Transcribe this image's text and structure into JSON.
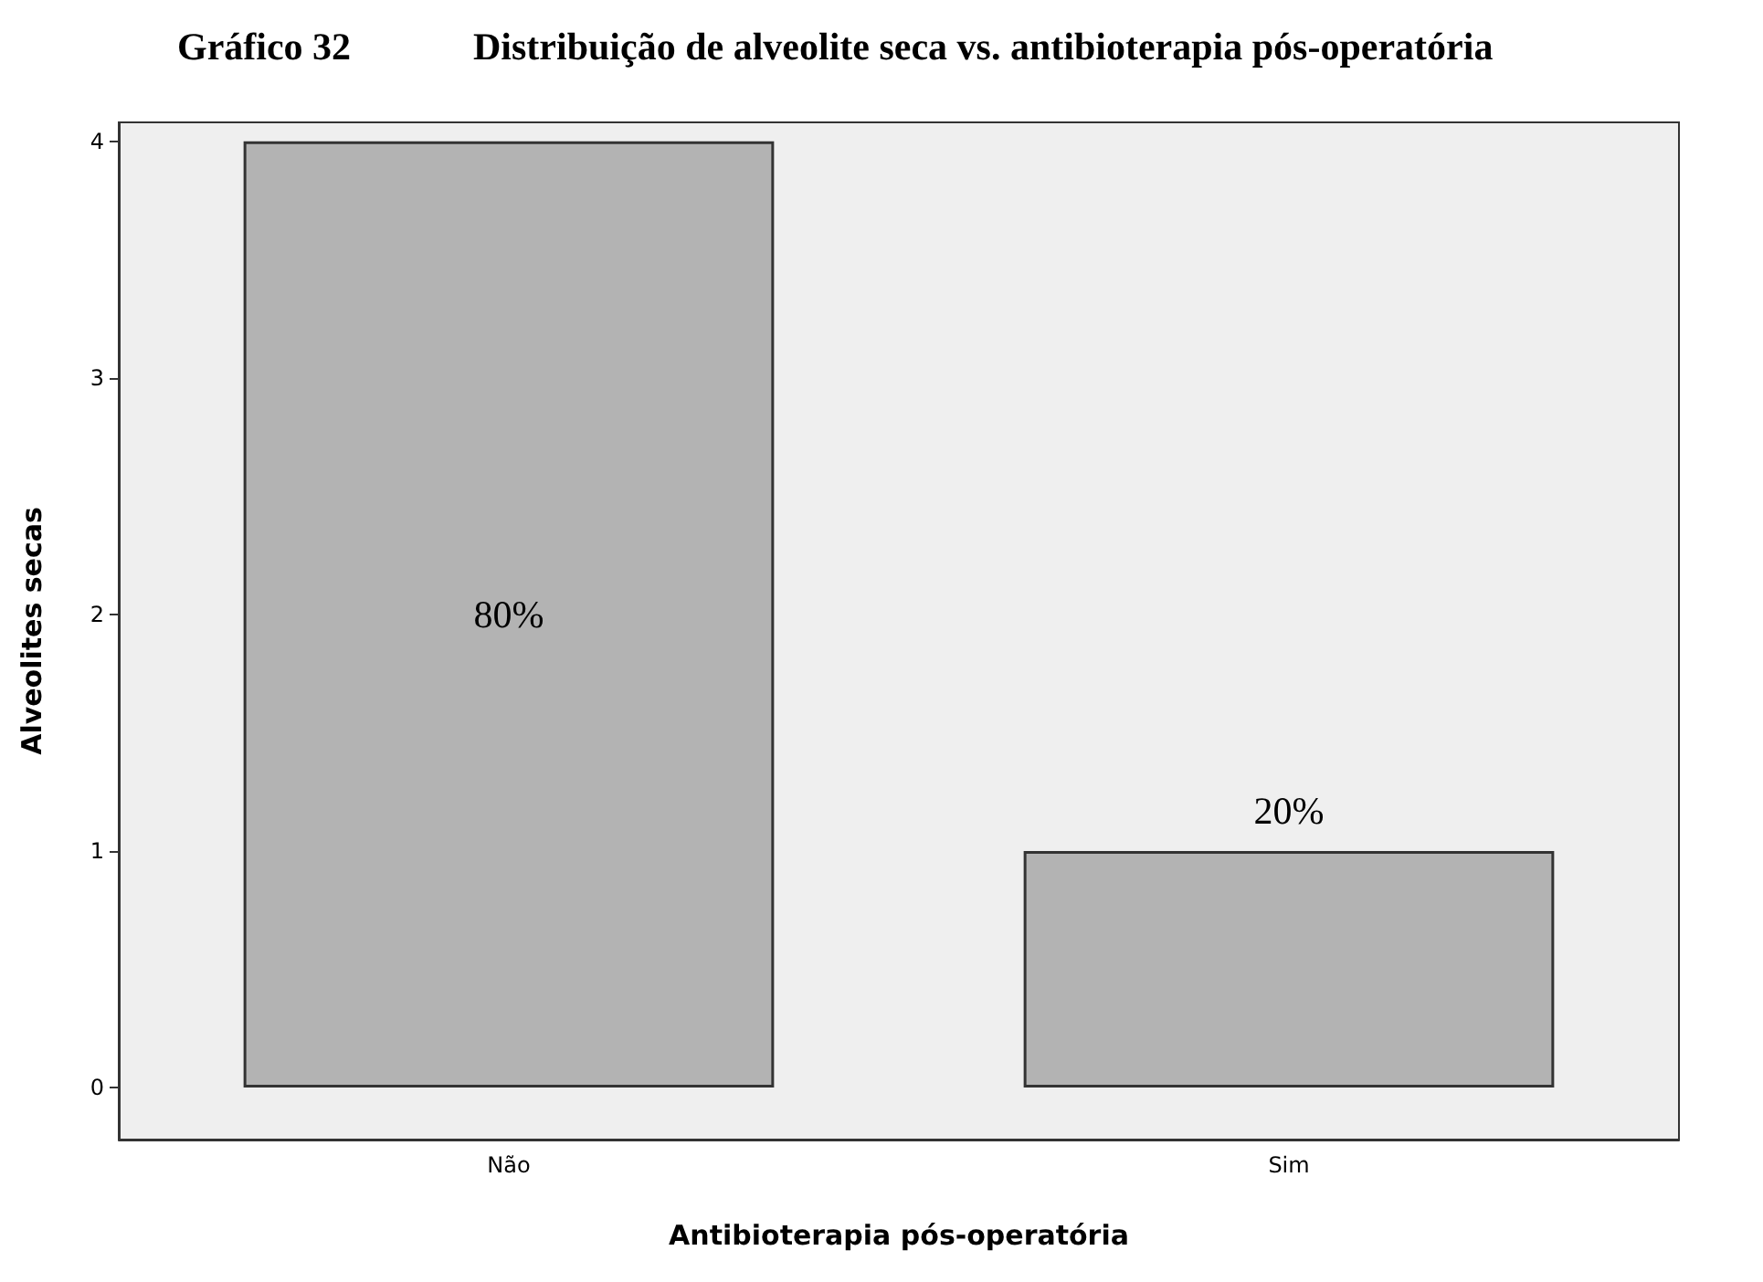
{
  "chart_data": {
    "type": "bar",
    "title": "Gráfico 32",
    "subtitle": "Distribuição de alveolite seca vs. antibioterapia pós-operatória",
    "xlabel": "Antibioterapia pós-operatória",
    "ylabel": "Alveolites secas",
    "categories": [
      "Não",
      "Sim"
    ],
    "values": [
      4,
      1
    ],
    "color": "#b3b3b3",
    "annotations": [
      "80%",
      "20%"
    ],
    "ylim": [
      -0.22,
      4.08
    ],
    "yticks": [
      0,
      1,
      2,
      3,
      4
    ],
    "grid": false
  }
}
